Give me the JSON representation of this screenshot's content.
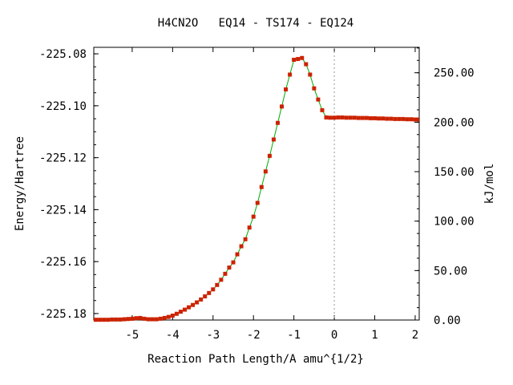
{
  "chart_data": {
    "type": "scatter",
    "title": "H4CN2O   EQ14 - TS174 - EQ124",
    "xlabel": "Reaction Path Length/A amu^{1/2}",
    "ylabel": "Energy/Hartree",
    "y2label": "kJ/mol",
    "xlim": [
      -5.95,
      2.1
    ],
    "ylim": [
      -225.1825,
      -225.0775
    ],
    "y2lim": [
      0,
      275.7
    ],
    "x_ticks": [
      -5,
      -4,
      -3,
      -2,
      -1,
      0,
      1,
      2
    ],
    "x_tick_labels": [
      "-5",
      "-4",
      "-3",
      "-2",
      "-1",
      "0",
      "1",
      "2"
    ],
    "y_ticks": [
      -225.08,
      -225.1,
      -225.12,
      -225.14,
      -225.16,
      -225.18
    ],
    "y_tick_labels": [
      "-225.08",
      "-225.10",
      "-225.12",
      "-225.14",
      "-225.16",
      "-225.18"
    ],
    "y2_ticks": [
      0,
      50,
      100,
      150,
      200,
      250
    ],
    "y2_tick_labels": [
      "0.00",
      "50.00",
      "100.00",
      "150.00",
      "200.00",
      "250.00"
    ],
    "transition_state_x": 0,
    "line_color": "#00aa00",
    "marker_color": "#cc2200",
    "ts_line_color": "#999999",
    "x": [
      -5.9,
      -5.8,
      -5.7,
      -5.6,
      -5.5,
      -5.4,
      -5.3,
      -5.2,
      -5.1,
      -5.0,
      -4.9,
      -4.8,
      -4.7,
      -4.6,
      -4.5,
      -4.4,
      -4.3,
      -4.2,
      -4.1,
      -4.0,
      -3.9,
      -3.8,
      -3.7,
      -3.6,
      -3.5,
      -3.4,
      -3.3,
      -3.2,
      -3.1,
      -3.0,
      -2.9,
      -2.8,
      -2.7,
      -2.6,
      -2.5,
      -2.4,
      -2.3,
      -2.2,
      -2.1,
      -2.0,
      -1.9,
      -1.8,
      -1.7,
      -1.6,
      -1.5,
      -1.4,
      -1.3,
      -1.2,
      -1.1,
      -1.0,
      -0.9,
      -0.8,
      -0.7,
      -0.6,
      -0.5,
      -0.4,
      -0.3,
      -0.2,
      -0.1,
      0.0,
      0.1,
      0.2,
      0.3,
      0.4,
      0.5,
      0.6,
      0.7,
      0.8,
      0.9,
      1.0,
      1.1,
      1.2,
      1.3,
      1.4,
      1.5,
      1.6,
      1.7,
      1.8,
      1.9,
      2.0,
      2.05
    ],
    "y": [
      -225.1824,
      -225.1824,
      -225.1824,
      -225.1824,
      -225.1823,
      -225.1823,
      -225.1823,
      -225.1822,
      -225.1821,
      -225.182,
      -225.1818,
      -225.1817,
      -225.182,
      -225.1822,
      -225.1822,
      -225.1822,
      -225.182,
      -225.1817,
      -225.1813,
      -225.1808,
      -225.1801,
      -225.1793,
      -225.1785,
      -225.1776,
      -225.1767,
      -225.1757,
      -225.1746,
      -225.1734,
      -225.1721,
      -225.1707,
      -225.169,
      -225.167,
      -225.1647,
      -225.1623,
      -225.1603,
      -225.1572,
      -225.1541,
      -225.1514,
      -225.1469,
      -225.1427,
      -225.1374,
      -225.1313,
      -225.1253,
      -225.1193,
      -225.113,
      -225.1066,
      -225.1003,
      -225.0937,
      -225.088,
      -225.0823,
      -225.082,
      -225.0816,
      -225.084,
      -225.088,
      -225.0933,
      -225.0976,
      -225.1017,
      -225.1045,
      -225.1046,
      -225.1046,
      -225.1045,
      -225.1045,
      -225.1046,
      -225.1046,
      -225.1046,
      -225.1047,
      -225.1047,
      -225.1047,
      -225.1048,
      -225.1048,
      -225.1049,
      -225.1049,
      -225.105,
      -225.105,
      -225.1051,
      -225.1051,
      -225.1051,
      -225.1052,
      -225.1052,
      -225.1053,
      -225.1053
    ]
  }
}
